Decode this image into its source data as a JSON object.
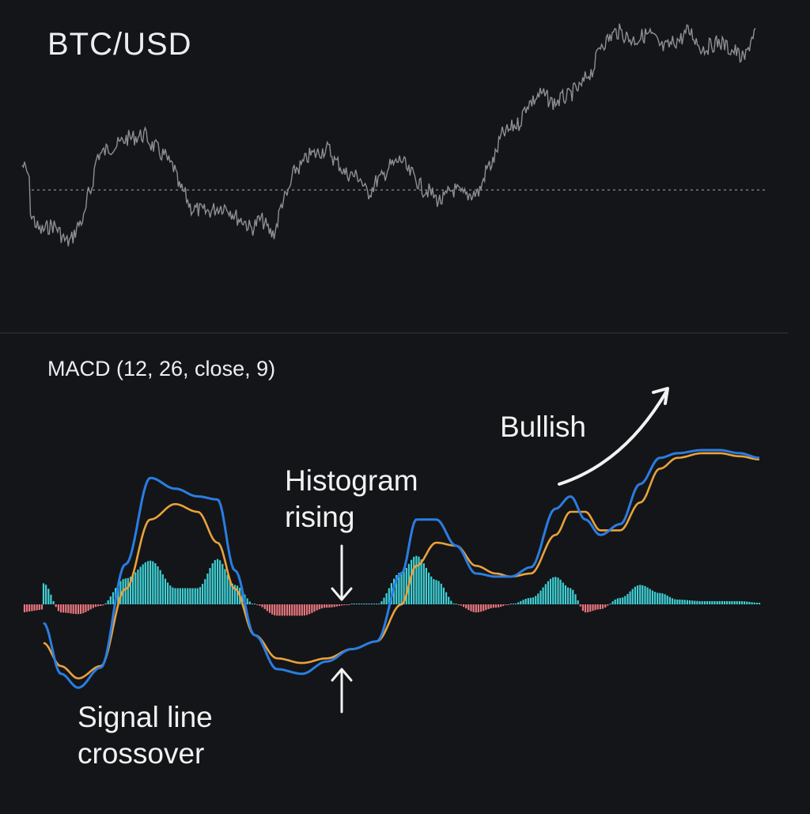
{
  "price_panel": {
    "title": "BTC/USD"
  },
  "macd_panel": {
    "title": "MACD (12, 26, close, 9)"
  },
  "annotations": {
    "histogram_rising": {
      "line1": "Histogram",
      "line2": "rising"
    },
    "bullish": {
      "text": "Bullish"
    },
    "signal_crossover": {
      "line1": "Signal line",
      "line2": "crossover"
    }
  },
  "colors": {
    "background": "#141518",
    "price_line": "#8c8f95",
    "reference_line": "#8a8d92",
    "macd_line": "#2a7de1",
    "signal_line": "#e9a23b",
    "histogram_positive": "#3fd1d6",
    "histogram_negative": "#e8767f",
    "divider": "#2b2d31",
    "annotation": "#f2f2f2"
  },
  "chart_data": [
    {
      "type": "line",
      "panel": "price",
      "title": "BTC/USD",
      "dashed_reference": 0.58,
      "anchors": [
        [
          0,
          0.49
        ],
        [
          2,
          0.52
        ],
        [
          3,
          0.68
        ],
        [
          6,
          0.73
        ],
        [
          10,
          0.71
        ],
        [
          15,
          0.77
        ],
        [
          20,
          0.69
        ],
        [
          22,
          0.59
        ],
        [
          25,
          0.45
        ],
        [
          30,
          0.42
        ],
        [
          35,
          0.39
        ],
        [
          40,
          0.38
        ],
        [
          43,
          0.42
        ],
        [
          46,
          0.45
        ],
        [
          49,
          0.49
        ],
        [
          52,
          0.58
        ],
        [
          56,
          0.65
        ],
        [
          60,
          0.66
        ],
        [
          66,
          0.64
        ],
        [
          72,
          0.69
        ],
        [
          75,
          0.72
        ],
        [
          78,
          0.69
        ],
        [
          82,
          0.74
        ],
        [
          86,
          0.61
        ],
        [
          90,
          0.5
        ],
        [
          95,
          0.45
        ],
        [
          100,
          0.43
        ],
        [
          103,
          0.48
        ],
        [
          106,
          0.52
        ],
        [
          110,
          0.53
        ],
        [
          113,
          0.59
        ],
        [
          117,
          0.54
        ],
        [
          121,
          0.49
        ],
        [
          124,
          0.47
        ],
        [
          127,
          0.52
        ],
        [
          132,
          0.58
        ],
        [
          137,
          0.62
        ],
        [
          141,
          0.58
        ],
        [
          145,
          0.6
        ],
        [
          149,
          0.59
        ],
        [
          153,
          0.49
        ],
        [
          158,
          0.37
        ],
        [
          162,
          0.34
        ],
        [
          166,
          0.26
        ],
        [
          170,
          0.23
        ],
        [
          174,
          0.26
        ],
        [
          178,
          0.24
        ],
        [
          182,
          0.21
        ],
        [
          186,
          0.15
        ],
        [
          190,
          0.04
        ],
        [
          195,
          0.0
        ],
        [
          200,
          0.03
        ],
        [
          205,
          0.01
        ],
        [
          210,
          0.06
        ],
        [
          215,
          0.03
        ],
        [
          218,
          0.0
        ],
        [
          223,
          0.06
        ],
        [
          228,
          0.04
        ],
        [
          233,
          0.07
        ],
        [
          236,
          0.1
        ],
        [
          240,
          0.0
        ]
      ],
      "anchor_x_max": 240,
      "y_scale_note": "relative scale, 0 = lowest, 1 = highest shown"
    },
    {
      "type": "line",
      "panel": "macd",
      "title": "MACD (12, 26, close, 9)",
      "ylim": [
        -1.0,
        1.0
      ],
      "series": [
        {
          "key": "macd",
          "x": [
            0,
            7,
            14,
            23,
            33,
            43,
            53,
            62,
            70,
            77,
            85,
            94,
            104,
            114,
            124,
            134,
            144,
            150,
            158,
            166,
            174,
            182,
            188,
            196,
            206,
            212,
            218,
            224,
            232,
            240,
            248,
            255,
            265,
            272,
            280,
            288
          ],
          "values": [
            -0.12,
            -0.45,
            -0.54,
            -0.41,
            0.26,
            0.82,
            0.75,
            0.7,
            0.68,
            0.22,
            -0.2,
            -0.42,
            -0.45,
            -0.37,
            -0.29,
            -0.24,
            0.2,
            0.55,
            0.55,
            0.38,
            0.2,
            0.18,
            0.18,
            0.24,
            0.62,
            0.7,
            0.55,
            0.45,
            0.52,
            0.78,
            0.95,
            0.98,
            1.0,
            1.0,
            0.98,
            0.95
          ]
        },
        {
          "key": "signal",
          "x": [
            0,
            7,
            14,
            23,
            33,
            43,
            53,
            62,
            70,
            77,
            85,
            94,
            104,
            114,
            124,
            134,
            144,
            150,
            158,
            166,
            174,
            182,
            188,
            196,
            206,
            212,
            218,
            224,
            232,
            240,
            248,
            255,
            265,
            272,
            280,
            288
          ],
          "values": [
            -0.25,
            -0.4,
            -0.48,
            -0.4,
            0.1,
            0.55,
            0.65,
            0.6,
            0.4,
            0.1,
            -0.2,
            -0.35,
            -0.38,
            -0.35,
            -0.29,
            -0.24,
            0.0,
            0.25,
            0.4,
            0.38,
            0.25,
            0.2,
            0.18,
            0.2,
            0.45,
            0.6,
            0.6,
            0.48,
            0.48,
            0.66,
            0.88,
            0.95,
            0.98,
            0.98,
            0.96,
            0.94
          ]
        }
      ],
      "histogram": {
        "x_max": 288,
        "bars": "macd minus signal per bar"
      }
    }
  ]
}
